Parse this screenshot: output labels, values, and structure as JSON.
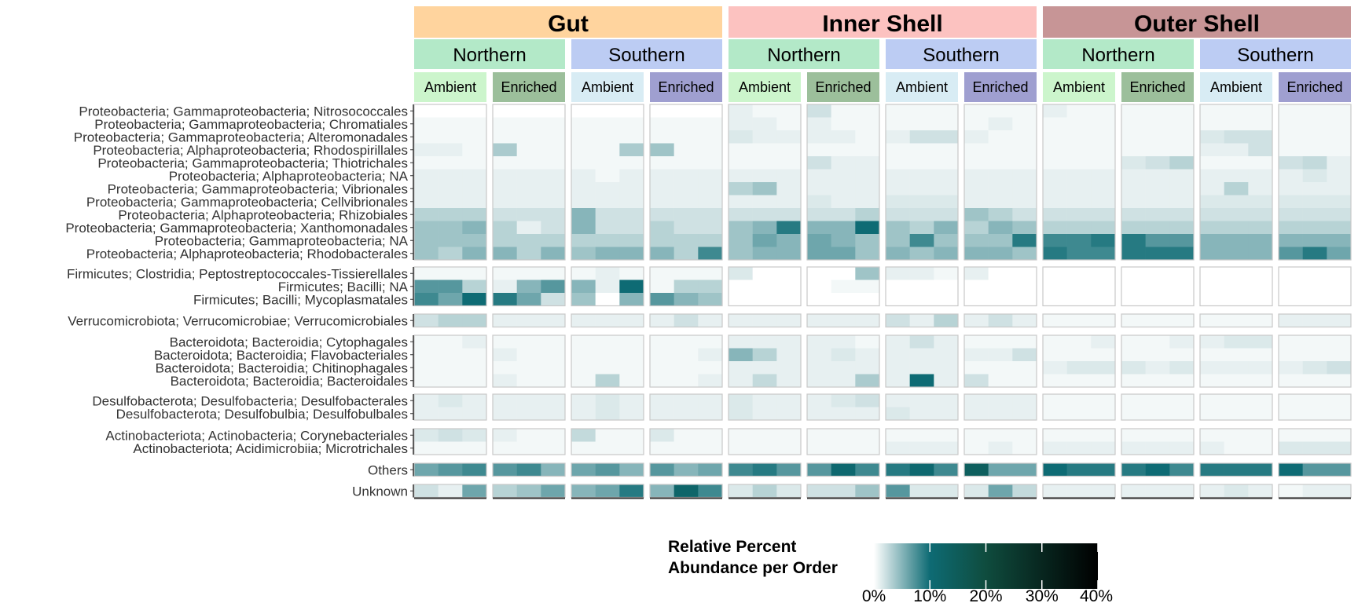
{
  "colors": {
    "tissue": {
      "Gut": "#ffd49e",
      "Inner Shell": "#fcc2c0",
      "Outer Shell": "#c79596"
    },
    "region": {
      "Northern": "#b3e9c8",
      "Southern": "#bcccf3"
    },
    "treatment": {
      "Northern": {
        "Ambient": "#ccf5cc",
        "Enriched": "#9cbf9b"
      },
      "Southern": {
        "Ambient": "#d8ecf4",
        "Enriched": "#9f9fd0"
      }
    },
    "scale": [
      "#ffffff",
      "#0e6b74",
      "#0f4c3e",
      "#000000"
    ],
    "panel_border": "#c8c8c8"
  },
  "chart_data": {
    "type": "heatmap",
    "title": "",
    "xlabel": "",
    "ylabel": "",
    "tissues": [
      "Gut",
      "Inner Shell",
      "Outer Shell"
    ],
    "regions": [
      "Northern",
      "Southern"
    ],
    "treatments": [
      "Ambient",
      "Enriched"
    ],
    "replicates_per_panel": 3,
    "row_groups": [
      {
        "rows": [
          "Proteobacteria; Gammaproteobacteria; Nitrosococcales",
          "Proteobacteria; Gammaproteobacteria; Chromatiales",
          "Proteobacteria; Gammaproteobacteria; Alteromonadales",
          "Proteobacteria; Alphaproteobacteria; Rhodospirillales",
          "Proteobacteria; Gammaproteobacteria; Thiotrichales",
          "Proteobacteria; Alphaproteobacteria; NA",
          "Proteobacteria; Gammaproteobacteria; Vibrionales",
          "Proteobacteria; Gammaproteobacteria; Cellvibrionales",
          "Proteobacteria; Alphaproteobacteria; Rhizobiales",
          "Proteobacteria; Gammaproteobacteria; Xanthomonadales",
          "Proteobacteria; Gammaproteobacteria; NA",
          "Proteobacteria; Alphaproteobacteria; Rhodobacterales"
        ]
      },
      {
        "rows": [
          "Firmicutes; Clostridia; Peptostreptococcales-Tissierellales",
          "Firmicutes; Bacilli; NA",
          "Firmicutes; Bacilli; Mycoplasmatales"
        ]
      },
      {
        "rows": [
          "Verrucomicrobiota; Verrucomicrobiae; Verrucomicrobiales"
        ]
      },
      {
        "rows": [
          "Bacteroidota; Bacteroidia; Cytophagales",
          "Bacteroidota; Bacteroidia; Flavobacteriales",
          "Bacteroidota; Bacteroidia; Chitinophagales",
          "Bacteroidota; Bacteroidia; Bacteroidales"
        ]
      },
      {
        "rows": [
          "Desulfobacterota; Desulfobacteria; Desulfobacterales",
          "Desulfobacterota; Desulfobulbia; Desulfobulbales"
        ]
      },
      {
        "rows": [
          "Actinobacteriota; Actinobacteria; Corynebacteriales",
          "Actinobacteriota; Acidimicrobiia; Microtrichales"
        ]
      },
      {
        "rows": [
          "Others"
        ]
      },
      {
        "rows": [
          "Unknown"
        ]
      }
    ],
    "values_note_units": "percent",
    "values": {
      "Proteobacteria; Gammaproteobacteria; Nitrosococcales": [
        0,
        0,
        0,
        0,
        0,
        0,
        0,
        0,
        0,
        0,
        0,
        0,
        1,
        0.5,
        0.5,
        2,
        0.5,
        0.5,
        0.5,
        0.5,
        0.5,
        0.5,
        0.5,
        0.5,
        1,
        0.5,
        0.5,
        0.5,
        0.5,
        0.5,
        0.5,
        0.5,
        0.5,
        0.5,
        0.5,
        0.5
      ],
      "Proteobacteria; Gammaproteobacteria; Chromatiales": [
        0.5,
        0.5,
        0.5,
        0.5,
        0.5,
        0.5,
        0.5,
        0.5,
        0.5,
        0.5,
        0.5,
        0.5,
        1,
        1,
        0.5,
        1,
        0.5,
        0.5,
        0.5,
        0.5,
        0.5,
        0.5,
        1,
        0.5,
        0.5,
        0.5,
        0.5,
        0.5,
        0.5,
        0.5,
        0.5,
        0.5,
        0.5,
        0.5,
        0.5,
        0.5
      ],
      "Proteobacteria; Gammaproteobacteria; Alteromonadales": [
        0.5,
        0.5,
        0.5,
        0.5,
        0.5,
        0.5,
        0.5,
        0.5,
        0.5,
        0.5,
        0.5,
        0.5,
        1.5,
        1,
        1,
        1,
        1,
        0.5,
        1,
        2,
        2,
        1,
        0.5,
        0.5,
        0.5,
        0.5,
        0.5,
        0.5,
        0.5,
        0.5,
        1.5,
        2,
        2,
        0.5,
        0.5,
        0.5
      ],
      "Proteobacteria; Alphaproteobacteria; Rhodospirillales": [
        1,
        1,
        0.5,
        3.5,
        0.5,
        0.5,
        0.5,
        0.5,
        3.5,
        4,
        0.5,
        0.5,
        0.5,
        0.5,
        0.5,
        0.5,
        0.5,
        0.5,
        0.5,
        0.5,
        0.5,
        0.5,
        0.5,
        0.5,
        0.5,
        0.5,
        0.5,
        0.5,
        0.5,
        0.5,
        1,
        1,
        2,
        0.5,
        0.5,
        0.5
      ],
      "Proteobacteria; Gammaproteobacteria; Thiotrichales": [
        0.5,
        0.5,
        0.5,
        0.5,
        0.5,
        0.5,
        0.5,
        0.5,
        0.5,
        0.5,
        0.5,
        0.5,
        0.5,
        0.5,
        0.5,
        2,
        1,
        1,
        0.5,
        0.5,
        0.5,
        0.5,
        0.5,
        0.5,
        0.5,
        0.5,
        0.5,
        1.5,
        2,
        3,
        0.5,
        0.5,
        0.5,
        2,
        2.5,
        1
      ],
      "Proteobacteria; Alphaproteobacteria; NA": [
        1,
        1,
        1,
        1,
        1,
        1,
        1,
        0.5,
        1,
        1,
        1,
        1,
        1,
        1,
        1,
        1,
        1,
        1,
        1,
        1,
        1,
        1,
        1,
        1,
        1,
        1,
        1,
        1,
        1,
        1,
        1,
        1,
        1,
        1,
        1.5,
        1
      ],
      "Proteobacteria; Gammaproteobacteria; Vibrionales": [
        1,
        1,
        1,
        1,
        1,
        1,
        1,
        1,
        1,
        1,
        1,
        1,
        3,
        4,
        1,
        1,
        1,
        1,
        1,
        1,
        1,
        1,
        1,
        1,
        1,
        1,
        1,
        1,
        1,
        1,
        1,
        3,
        1,
        1,
        1,
        1
      ],
      "Proteobacteria; Gammaproteobacteria; Cellvibrionales": [
        1,
        1,
        1,
        1,
        1,
        1,
        1,
        1,
        1,
        1,
        1,
        1,
        1,
        1,
        1,
        1.5,
        1,
        1,
        1.5,
        1.5,
        1.5,
        1,
        1,
        1,
        1,
        1,
        1,
        1,
        1,
        1,
        1.5,
        1.5,
        1.5,
        1.5,
        1.5,
        1.5
      ],
      "Proteobacteria; Alphaproteobacteria; Rhizobiales": [
        3,
        3,
        3,
        2,
        2,
        2,
        5,
        2,
        2,
        2,
        2,
        2,
        2,
        2,
        2,
        2,
        2,
        3,
        2,
        2,
        2,
        4,
        3,
        2,
        2,
        2,
        2,
        2,
        2,
        2,
        2,
        2,
        2,
        2,
        2,
        2
      ],
      "Proteobacteria; Gammaproteobacteria; Xanthomonadales": [
        4,
        4,
        5,
        3,
        1,
        2,
        5,
        2,
        2,
        3,
        2,
        2,
        4,
        5,
        9,
        5,
        5,
        10,
        4,
        3,
        5,
        3,
        5,
        4,
        3,
        3,
        3,
        3,
        3,
        3,
        3,
        3,
        3,
        3,
        3,
        3
      ],
      "Proteobacteria; Gammaproteobacteria; NA": [
        4,
        4,
        4,
        3,
        3,
        3,
        3,
        3,
        3,
        3,
        3,
        3,
        4,
        6,
        5,
        6,
        5,
        4,
        4,
        8,
        4,
        4,
        4,
        9,
        8,
        8,
        9,
        9,
        7,
        7,
        5,
        5,
        5,
        5,
        5,
        5
      ],
      "Proteobacteria; Alphaproteobacteria; Rhodobacterales": [
        4,
        3,
        5,
        5,
        3,
        5,
        4,
        5,
        5,
        5,
        3,
        8,
        4,
        5,
        5,
        6,
        6,
        4,
        5,
        4,
        5,
        5,
        5,
        4,
        9,
        8,
        8,
        9,
        9,
        9,
        5,
        5,
        5,
        7,
        9,
        6
      ],
      "Firmicutes; Clostridia; Peptostreptococcales-Tissierellales": [
        0.5,
        0.5,
        0.5,
        0.5,
        0.5,
        0.5,
        0.5,
        1,
        0.5,
        0.5,
        0.5,
        0.5,
        1.5,
        0,
        0,
        0,
        0,
        4,
        1,
        1,
        0.5,
        1,
        0,
        0,
        0,
        0,
        0,
        0,
        0,
        0,
        0,
        0,
        0,
        0,
        0,
        0
      ],
      "Firmicutes; Bacilli; NA": [
        7,
        7,
        3,
        1,
        5,
        7,
        5,
        1,
        10,
        0.5,
        3,
        3,
        0,
        0,
        0,
        0,
        0.5,
        0.5,
        0,
        0,
        0,
        0,
        0,
        0,
        0,
        0,
        0,
        0,
        0,
        0,
        0,
        0,
        0,
        0,
        0,
        0
      ],
      "Firmicutes; Bacilli; Mycoplasmatales": [
        8,
        6,
        10,
        9,
        6,
        2,
        4,
        0,
        5,
        7,
        5,
        4,
        0,
        0,
        0,
        0,
        0,
        0,
        0,
        0,
        0,
        0,
        0,
        0,
        0,
        0,
        0,
        0,
        0,
        0,
        0,
        0,
        0,
        0,
        0,
        0
      ],
      "Verrucomicrobiota; Verrucomicrobiae; Verrucomicrobiales": [
        2,
        3,
        3,
        1,
        1,
        1,
        1,
        1,
        1,
        1,
        2,
        1,
        1,
        1,
        1,
        1,
        1,
        1,
        2,
        1,
        3,
        1,
        2,
        1,
        0.5,
        0.5,
        0.5,
        0.5,
        0.5,
        0.5,
        0.5,
        0.5,
        0.5,
        1,
        1,
        1
      ],
      "Bacteroidota; Bacteroidia; Cytophagales": [
        0.5,
        0.5,
        1,
        0.5,
        0.5,
        0.5,
        0.5,
        0.5,
        0.5,
        0.5,
        0.5,
        0.5,
        1,
        1,
        1,
        1,
        1,
        0.5,
        1,
        2,
        1,
        0.5,
        0.5,
        0.5,
        0.5,
        0.5,
        1,
        0.5,
        0.5,
        1,
        1,
        1.5,
        1.5,
        0.5,
        0.5,
        0.5
      ],
      "Bacteroidota; Bacteroidia; Flavobacteriales": [
        0.5,
        0.5,
        0.5,
        1,
        0.5,
        0.5,
        0.5,
        0.5,
        0.5,
        0.5,
        0.5,
        1,
        5,
        3,
        1,
        1,
        1.5,
        1,
        1,
        1,
        1,
        1,
        1,
        2,
        0.5,
        0.5,
        0.5,
        0.5,
        0.5,
        0.5,
        0.5,
        0.5,
        0.5,
        0.5,
        0.5,
        0.5
      ],
      "Bacteroidota; Bacteroidia; Chitinophagales": [
        0.5,
        0.5,
        0.5,
        0.5,
        0.5,
        0.5,
        0.5,
        0.5,
        0.5,
        0.5,
        0.5,
        0.5,
        1,
        1,
        1,
        1,
        1,
        1,
        1,
        1,
        1,
        0.5,
        0.5,
        0.5,
        1,
        1.5,
        1.5,
        1.5,
        1,
        1.5,
        1,
        1,
        1,
        1,
        1.5,
        2
      ],
      "Bacteroidota; Bacteroidia; Bacteroidales": [
        0.5,
        0.5,
        0.5,
        1,
        0.5,
        0.5,
        0.5,
        3,
        0.5,
        0.5,
        0.5,
        1,
        1,
        2.5,
        1,
        1,
        1,
        3.5,
        1,
        10,
        1,
        2,
        0.5,
        0.5,
        0.5,
        0.5,
        0.5,
        0.5,
        0.5,
        0.5,
        0.5,
        0.5,
        0.5,
        0.5,
        0.5,
        0.5
      ],
      "Desulfobacterota; Desulfobacteria; Desulfobacterales": [
        1,
        1.5,
        1,
        1,
        1,
        1,
        1,
        1.5,
        1,
        1,
        1,
        1,
        1.5,
        1,
        1,
        1,
        1.5,
        2,
        1,
        1,
        1,
        1,
        1,
        1,
        0.5,
        0.5,
        0.5,
        0.5,
        0.5,
        0.5,
        0.5,
        0.5,
        0.5,
        0.5,
        0.5,
        0.5
      ],
      "Desulfobacterota; Desulfobulbia; Desulfobulbales": [
        1,
        1,
        1,
        1,
        1,
        1,
        1,
        1.5,
        1,
        1,
        1,
        1,
        1.5,
        1,
        1,
        1,
        1,
        1,
        1.5,
        1,
        1,
        1,
        1,
        1,
        0.5,
        0.5,
        0.5,
        0.5,
        0.5,
        0.5,
        0.5,
        0.5,
        0.5,
        0.5,
        0.5,
        0.5
      ],
      "Actinobacteriota; Actinobacteria; Corynebacteriales": [
        1.5,
        2,
        1.5,
        1,
        0.5,
        0.5,
        2.5,
        0.5,
        0.5,
        1.5,
        0.5,
        0.5,
        0.5,
        0.5,
        0.5,
        0.5,
        0.5,
        0.5,
        0.5,
        0.5,
        0.5,
        0.5,
        0.5,
        0.5,
        0.5,
        0.5,
        0.5,
        0.5,
        0.5,
        0.5,
        0.5,
        0.5,
        0.5,
        0.5,
        0.5,
        0.5
      ],
      "Actinobacteriota; Acidimicrobiia; Microtrichales": [
        0.5,
        0.5,
        0.5,
        0.5,
        0.5,
        0.5,
        0.5,
        0.5,
        0.5,
        0.5,
        0.5,
        0.5,
        0.5,
        0.5,
        0.5,
        0.5,
        0.5,
        0.5,
        1,
        1,
        1,
        0.5,
        1,
        0.5,
        1,
        1,
        1,
        1,
        1,
        1,
        1,
        0.5,
        0.5,
        1.5,
        1.5,
        1.5
      ],
      "Others": [
        6,
        7,
        8,
        7,
        8,
        5,
        6,
        7,
        5,
        7,
        5,
        6,
        8,
        9,
        7,
        7,
        11,
        8,
        9,
        11,
        8,
        14,
        6,
        6,
        10,
        9,
        9,
        9,
        10,
        8,
        9,
        9,
        9,
        10,
        7,
        7
      ],
      "Unknown": [
        2,
        1,
        6,
        3,
        4,
        6,
        5,
        6,
        9,
        5,
        12,
        8,
        1.5,
        3,
        1.5,
        2,
        2,
        4,
        7,
        1.5,
        1.5,
        1.5,
        6,
        2.5,
        1,
        1,
        1,
        1,
        1,
        1,
        1,
        1.5,
        1,
        0.5,
        1,
        1
      ]
    },
    "legend": {
      "title": "Relative Percent\nAbundance per Order",
      "placement": "bottom",
      "range": [
        0,
        40
      ],
      "ticks": [
        0,
        10,
        20,
        30,
        40
      ],
      "tick_labels": [
        "0%",
        "10%",
        "20%",
        "30%",
        "40%"
      ]
    }
  }
}
